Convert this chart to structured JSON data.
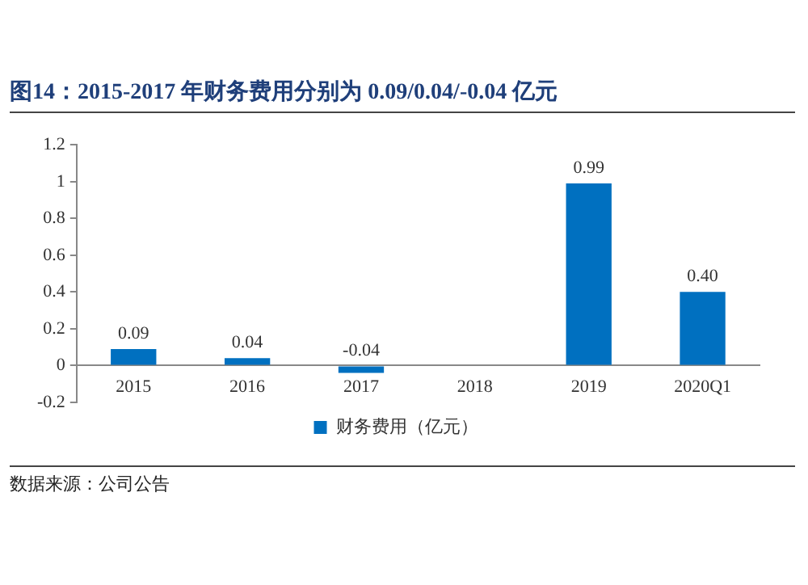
{
  "chart_data": {
    "type": "bar",
    "title": "图14：2015-2017 年财务费用分别为 0.09/0.04/-0.04 亿元",
    "categories": [
      "2015",
      "2016",
      "2017",
      "2018",
      "2019",
      "2020Q1"
    ],
    "series": [
      {
        "name": "财务费用（亿元）",
        "color": "#0070c0",
        "values": [
          0.09,
          0.04,
          -0.04,
          null,
          0.99,
          0.4
        ],
        "value_labels": [
          "0.09",
          "0.04",
          "-0.04",
          null,
          "0.99",
          "0.40"
        ]
      }
    ],
    "ylim": [
      -0.2,
      1.2
    ],
    "yticks": [
      -0.2,
      0,
      0.2,
      0.4,
      0.6,
      0.8,
      1,
      1.2
    ],
    "grid": false,
    "legend": "bottom",
    "annotations": [
      "数据来源：公司公告"
    ]
  }
}
